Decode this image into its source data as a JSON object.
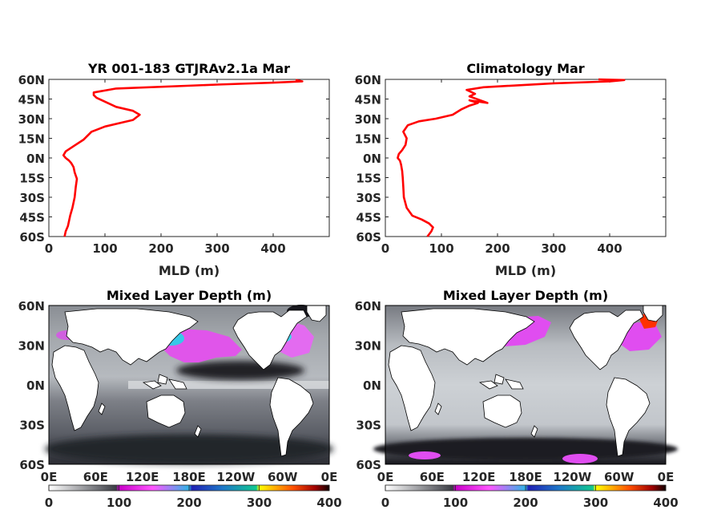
{
  "chart_data": [
    {
      "type": "line",
      "title": "YR 001-183 GTJRAv2.1a Mar",
      "xlabel": "MLD (m)",
      "ylabel": "",
      "xlim": [
        0,
        500
      ],
      "ylim": [
        -60,
        60
      ],
      "xticks": [
        0,
        100,
        200,
        300,
        400
      ],
      "yticks": [
        "60N",
        "45N",
        "30N",
        "15N",
        "0N",
        "15S",
        "30S",
        "45S",
        "60S"
      ],
      "line_color": "#ff0000",
      "series": [
        {
          "x": [
            28,
            30,
            34,
            36,
            38,
            42,
            46,
            48,
            50,
            46,
            44,
            40,
            36,
            30,
            26,
            30,
            44,
            62,
            76,
            100,
            130,
            150,
            162,
            150,
            120,
            100,
            85,
            80,
            80,
            120,
            300,
            400,
            452,
            440
          ],
          "y": [
            -60,
            -56,
            -52,
            -48,
            -44,
            -38,
            -30,
            -22,
            -16,
            -11,
            -7,
            -4,
            -2,
            0,
            2,
            5,
            9,
            14,
            20,
            24,
            27,
            29,
            33,
            36,
            39,
            43,
            46,
            48,
            50,
            53,
            56,
            57.5,
            58.5,
            59.5
          ]
        }
      ]
    },
    {
      "type": "line",
      "title": "Climatology Mar",
      "xlabel": "MLD (m)",
      "ylabel": "",
      "xlim": [
        0,
        500
      ],
      "ylim": [
        -60,
        60
      ],
      "xticks": [
        0,
        100,
        200,
        300,
        400
      ],
      "yticks": [
        "60N",
        "45N",
        "30N",
        "15N",
        "0N",
        "15S",
        "30S",
        "45S",
        "60S"
      ],
      "line_color": "#ff0000",
      "series": [
        {
          "x": [
            75,
            82,
            85,
            78,
            65,
            48,
            38,
            33,
            32,
            31,
            30,
            28,
            26,
            22,
            24,
            30,
            36,
            38,
            32,
            40,
            60,
            90,
            120,
            135,
            150,
            158,
            165,
            150,
            182,
            150,
            160,
            145,
            175,
            300,
            400,
            426,
            380
          ],
          "y": [
            -60,
            -56,
            -53,
            -50,
            -47,
            -44,
            -38,
            -30,
            -22,
            -15,
            -10,
            -5,
            -2,
            0,
            3,
            6,
            10,
            15,
            20,
            25,
            28,
            30,
            33,
            37,
            40,
            41,
            42,
            44,
            42,
            47,
            49,
            52,
            54,
            57,
            58.5,
            59.5,
            60
          ]
        }
      ]
    },
    {
      "type": "heatmap",
      "title": "Mixed Layer Depth (m)",
      "xticks": [
        "0E",
        "60E",
        "120E",
        "180E",
        "120W",
        "60W",
        "0E"
      ],
      "yticks": [
        "60N",
        "30N",
        "0N",
        "30S",
        "60S"
      ],
      "colorbar": {
        "ticks": [
          0,
          100,
          200,
          300,
          400
        ]
      }
    },
    {
      "type": "heatmap",
      "title": "Mixed Layer Depth (m)",
      "xticks": [
        "0E",
        "60E",
        "120E",
        "180E",
        "120W",
        "60W",
        "0E"
      ],
      "yticks": [
        "60N",
        "30N",
        "0N",
        "30S",
        "60S"
      ],
      "colorbar": {
        "ticks": [
          0,
          100,
          200,
          300,
          400
        ]
      }
    }
  ]
}
